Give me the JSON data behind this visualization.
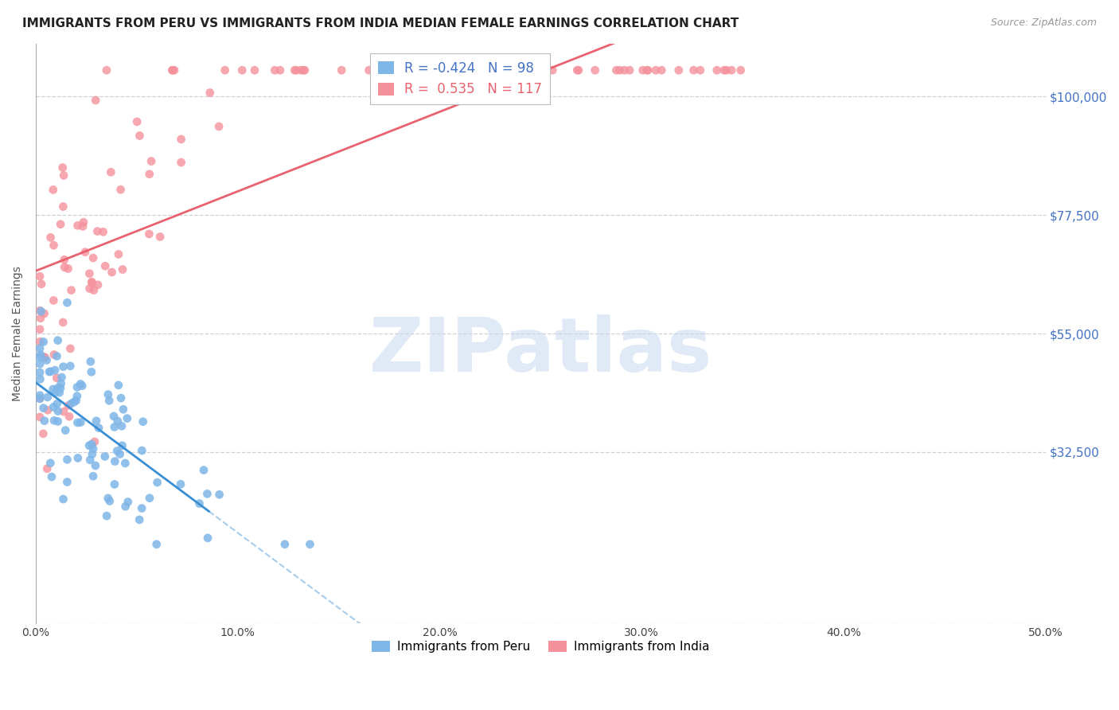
{
  "title": "IMMIGRANTS FROM PERU VS IMMIGRANTS FROM INDIA MEDIAN FEMALE EARNINGS CORRELATION CHART",
  "source": "Source: ZipAtlas.com",
  "ylabel": "Median Female Earnings",
  "xlim": [
    0.0,
    0.5
  ],
  "ylim": [
    0,
    110000
  ],
  "yticks": [
    0,
    32500,
    55000,
    77500,
    100000
  ],
  "ytick_labels": [
    "",
    "$32,500",
    "$55,000",
    "$77,500",
    "$100,000"
  ],
  "xticks": [
    0.0,
    0.1,
    0.2,
    0.3,
    0.4,
    0.5
  ],
  "xtick_labels": [
    "0.0%",
    "10.0%",
    "20.0%",
    "30.0%",
    "40.0%",
    "50.0%"
  ],
  "legend1_r": "-0.424",
  "legend1_n": "98",
  "legend2_r": "0.535",
  "legend2_n": "117",
  "peru_color": "#7EB6E8",
  "india_color": "#F4919B",
  "trend_peru_color": "#3A8FD4",
  "trend_india_color": "#E8636F",
  "watermark": "ZIPatlas",
  "watermark_color": "#C8D8F0",
  "background_color": "#FFFFFF",
  "grid_color": "#CCCCCC",
  "tick_color": "#4472C4",
  "title_color": "#222222",
  "ylabel_color": "#555555"
}
